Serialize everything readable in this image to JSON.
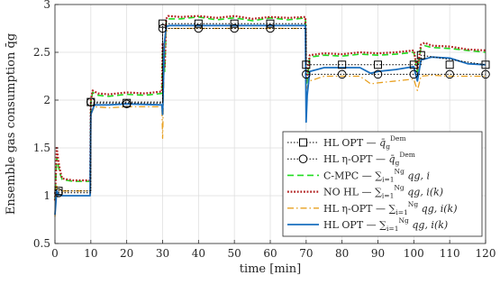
{
  "chart_data": {
    "type": "line",
    "xlabel": "time [min]",
    "ylabel": "Ensemble gas consumption q̄g",
    "xlim": [
      0,
      120
    ],
    "ylim": [
      0.5,
      3
    ],
    "xticks": [
      0,
      10,
      20,
      30,
      40,
      50,
      60,
      70,
      80,
      90,
      100,
      110,
      120
    ],
    "yticks": [
      0.5,
      1,
      1.5,
      2,
      2.5,
      3
    ],
    "xtick_labels": [
      "0",
      "10",
      "20",
      "30",
      "40",
      "50",
      "60",
      "70",
      "80",
      "90",
      "100",
      "110",
      "120"
    ],
    "ytick_labels": [
      "0.5",
      "1",
      "1.5",
      "2",
      "2.5",
      "3"
    ],
    "grid": true,
    "legend_position": "lower-right",
    "series": [
      {
        "name": "HL OPT — q̄g^Dem",
        "color": "#000000",
        "dash": "1.5,2",
        "width": 1,
        "marker": "square",
        "x": [
          0,
          1,
          1,
          10,
          10,
          30,
          30,
          70,
          70,
          100,
          100,
          102,
          102,
          120
        ],
        "y": [
          1.05,
          1.05,
          1.05,
          1.05,
          1.97,
          1.97,
          2.8,
          2.8,
          2.37,
          2.37,
          2.37,
          2.37,
          2.47,
          2.37
        ],
        "markers_x": [
          1,
          10,
          20,
          30,
          40,
          50,
          60,
          70,
          80,
          90,
          100,
          102,
          110,
          120
        ],
        "markers_y": [
          1.05,
          1.98,
          1.97,
          2.8,
          2.8,
          2.8,
          2.8,
          2.37,
          2.37,
          2.37,
          2.37,
          2.47,
          2.37,
          2.37
        ]
      },
      {
        "name": "HL η-OPT — q̄g^Dem",
        "color": "#000000",
        "dash": "1.5,2",
        "width": 1,
        "marker": "circle",
        "x": [
          0,
          1,
          10,
          10,
          30,
          30,
          70,
          70,
          120
        ],
        "y": [
          1.03,
          1.03,
          1.03,
          1.98,
          1.98,
          2.75,
          2.75,
          2.27,
          2.27
        ],
        "markers_x": [
          1,
          10,
          20,
          30,
          40,
          50,
          60,
          70,
          80,
          90,
          100,
          110,
          120
        ],
        "markers_y": [
          1.03,
          1.98,
          1.96,
          2.75,
          2.75,
          2.75,
          2.75,
          2.27,
          2.27,
          2.27,
          2.27,
          2.27,
          2.27
        ]
      },
      {
        "name": "C-MPC — ∑i=1Ng qg,i",
        "color": "#22dd22",
        "dash": "7,4",
        "width": 1.6,
        "marker": "none",
        "x": [
          0,
          0.5,
          1,
          1.5,
          2,
          5,
          9.8,
          10,
          10.5,
          12,
          15,
          20,
          25,
          29.8,
          30,
          30.6,
          31,
          31.5,
          35,
          40,
          45,
          50,
          55,
          60,
          65,
          69.8,
          70,
          70.3,
          71,
          75,
          80,
          85,
          90,
          95,
          100,
          101,
          102,
          103,
          105,
          110,
          115,
          120
        ],
        "y": [
          0.95,
          1.4,
          1.3,
          1.22,
          1.17,
          1.15,
          1.15,
          1.98,
          2.08,
          2.05,
          2.04,
          2.06,
          2.05,
          2.07,
          2.55,
          2.3,
          2.82,
          2.85,
          2.85,
          2.87,
          2.84,
          2.86,
          2.83,
          2.86,
          2.84,
          2.86,
          2.15,
          2.2,
          2.45,
          2.47,
          2.46,
          2.48,
          2.47,
          2.48,
          2.5,
          2.3,
          2.55,
          2.57,
          2.55,
          2.54,
          2.52,
          2.5
        ]
      },
      {
        "name": "NO HL — ∑i=1Ng qg,i(k)",
        "color": "#b22222",
        "dash": "1.8,1.8",
        "width": 2.2,
        "marker": "none",
        "x": [
          0,
          0.5,
          1,
          1.5,
          2,
          5,
          9.8,
          10,
          10.5,
          12,
          15,
          20,
          25,
          29.8,
          30,
          30.6,
          31,
          31.5,
          35,
          40,
          45,
          50,
          55,
          60,
          65,
          69.8,
          70,
          70.3,
          71,
          75,
          80,
          85,
          90,
          95,
          100,
          101,
          102,
          103,
          105,
          110,
          115,
          120
        ],
        "y": [
          0.95,
          1.5,
          1.35,
          1.25,
          1.18,
          1.16,
          1.16,
          2.0,
          2.1,
          2.07,
          2.06,
          2.08,
          2.07,
          2.09,
          2.6,
          2.35,
          2.85,
          2.88,
          2.87,
          2.88,
          2.86,
          2.88,
          2.85,
          2.87,
          2.86,
          2.87,
          2.2,
          2.25,
          2.47,
          2.49,
          2.48,
          2.5,
          2.49,
          2.5,
          2.52,
          2.32,
          2.58,
          2.6,
          2.57,
          2.56,
          2.53,
          2.52
        ]
      },
      {
        "name": "HL η-OPT — ∑i=1Ng qg,i(k)",
        "color": "#e8a020",
        "dash": "7,3,1.5,3",
        "width": 1.3,
        "marker": "none",
        "x": [
          0,
          0.5,
          1,
          2,
          5,
          9.8,
          10,
          11,
          15,
          20,
          29.8,
          30,
          30.5,
          31,
          32,
          40,
          50,
          60,
          69.8,
          70,
          70.4,
          71,
          75,
          80,
          85,
          88,
          90,
          95,
          100,
          101,
          102,
          105,
          110,
          115,
          120
        ],
        "y": [
          0.78,
          1.1,
          1.06,
          1.05,
          1.05,
          1.05,
          1.85,
          1.93,
          1.92,
          1.93,
          1.93,
          1.6,
          2.5,
          2.72,
          2.75,
          2.75,
          2.75,
          2.75,
          2.75,
          2.1,
          2.15,
          2.2,
          2.25,
          2.25,
          2.25,
          2.17,
          2.18,
          2.2,
          2.22,
          2.1,
          2.25,
          2.26,
          2.25,
          2.25,
          2.25
        ]
      },
      {
        "name": "HL OPT — ∑i=1Ng qg,i(k)",
        "color": "#1a6fbf",
        "dash": "",
        "width": 1.8,
        "marker": "none",
        "x": [
          0,
          0.5,
          1,
          2,
          5,
          9.8,
          10,
          11,
          15,
          20,
          29.8,
          30,
          30.5,
          31,
          32,
          40,
          50,
          60,
          69.8,
          70,
          70.3,
          71,
          75,
          80,
          85,
          88,
          90,
          95,
          100,
          101,
          102,
          105,
          110,
          115,
          120
        ],
        "y": [
          0.8,
          1.05,
          1.01,
          1.0,
          1.0,
          1.0,
          1.85,
          1.95,
          1.95,
          1.96,
          1.95,
          1.85,
          2.6,
          2.77,
          2.78,
          2.78,
          2.78,
          2.78,
          2.78,
          1.77,
          2.05,
          2.3,
          2.34,
          2.34,
          2.34,
          2.28,
          2.3,
          2.32,
          2.35,
          2.2,
          2.42,
          2.45,
          2.44,
          2.38,
          2.37
        ]
      }
    ]
  },
  "legend": {
    "entries": [
      {
        "main": "HL OPT — ",
        "sym": "q̄",
        "sub": "g",
        "sup": "Dem",
        "suffix": ""
      },
      {
        "main": "HL η-OPT — ",
        "sym": "q̄",
        "sub": "g",
        "sup": "Dem",
        "suffix": ""
      },
      {
        "main": "C-MPC — ",
        "sym": "∑",
        "sub": "i=1",
        "sup": "Ng",
        "suffix": " qg, i"
      },
      {
        "main": "NO HL — ",
        "sym": "∑",
        "sub": "i=1",
        "sup": "Ng",
        "suffix": " qg, i(k)"
      },
      {
        "main": "HL η-OPT — ",
        "sym": "∑",
        "sub": "i=1",
        "sup": "Ng",
        "suffix": " qg, i(k)"
      },
      {
        "main": "HL OPT — ",
        "sym": "∑",
        "sub": "i=1",
        "sup": "Ng",
        "suffix": " qg, i(k)"
      }
    ]
  }
}
